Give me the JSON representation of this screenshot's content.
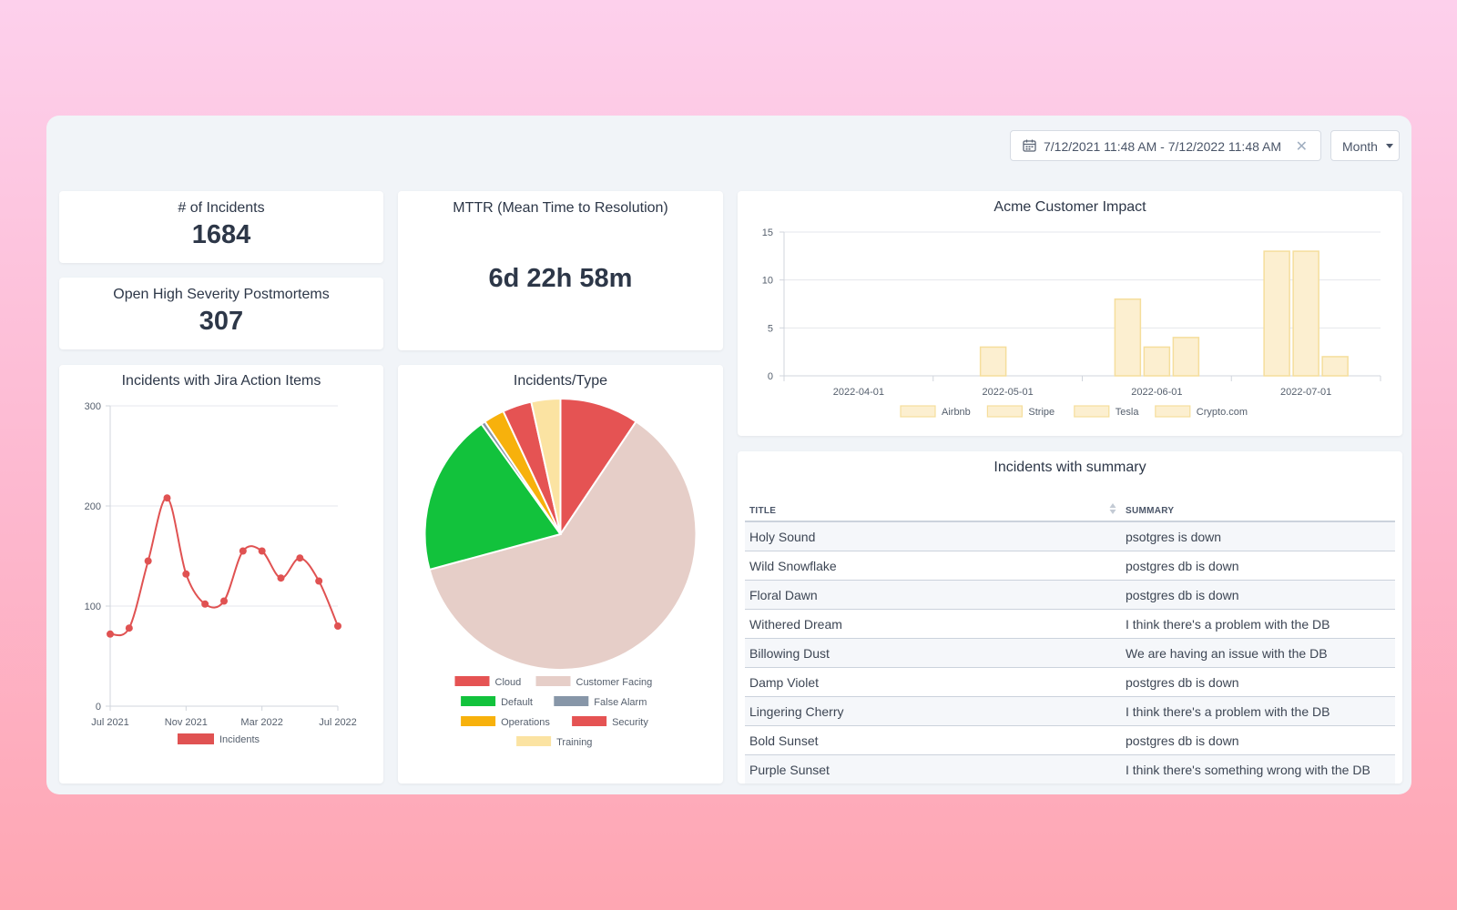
{
  "toolbar": {
    "date_range": "7/12/2021 11:48 AM - 7/12/2022 11:48 AM",
    "clear_glyph": "✕",
    "period": "Month"
  },
  "stats": {
    "incidents": {
      "title": "# of Incidents",
      "value": "1684"
    },
    "postmortems": {
      "title": "Open High Severity Postmortems",
      "value": "307"
    },
    "mttr": {
      "title": "MTTR (Mean Time to Resolution)",
      "value": "6d 22h 58m"
    }
  },
  "chart_data": [
    {
      "type": "line",
      "title": "Incidents with Jira Action Items",
      "x_ticks": [
        "Jul 2021",
        "Nov 2021",
        "Mar 2022",
        "Jul 2022"
      ],
      "ylim": [
        0,
        300
      ],
      "y_ticks": [
        0,
        100,
        200,
        300
      ],
      "series": [
        {
          "name": "Incidents",
          "color": "#e05252",
          "x": [
            "2021-07-01",
            "2021-08-01",
            "2021-09-01",
            "2021-10-01",
            "2021-11-01",
            "2021-12-01",
            "2022-01-01",
            "2022-02-01",
            "2022-03-01",
            "2022-04-01",
            "2022-05-01",
            "2022-06-01",
            "2022-07-01"
          ],
          "values": [
            72,
            78,
            145,
            208,
            132,
            102,
            105,
            155,
            155,
            128,
            148,
            125,
            80
          ]
        }
      ],
      "grid": true,
      "legend": "bottom"
    },
    {
      "type": "pie",
      "title": "Incidents/Type",
      "slices": [
        {
          "label": "Cloud",
          "value": 9.5,
          "color": "#e55353"
        },
        {
          "label": "Customer Facing",
          "value": 62,
          "color": "#e6cec8"
        },
        {
          "label": "Default",
          "value": 19.5,
          "color": "#12c23c"
        },
        {
          "label": "False Alarm",
          "value": 0.5,
          "color": "#8796a8"
        },
        {
          "label": "Operations",
          "value": 2.5,
          "color": "#f7b10c"
        },
        {
          "label": "Security",
          "value": 3.5,
          "color": "#e55353"
        },
        {
          "label": "Training",
          "value": 3.5,
          "color": "#fbe3a2"
        }
      ],
      "legend": "bottom"
    },
    {
      "type": "bar",
      "title": "Acme Customer Impact",
      "x_ticks": [
        "2022-04-01",
        "2022-05-01",
        "2022-06-01",
        "2022-07-01"
      ],
      "ylim": [
        0,
        15
      ],
      "y_ticks": [
        0,
        5,
        10,
        15
      ],
      "series": [
        {
          "name": "Airbnb",
          "color": "#fcefd0"
        },
        {
          "name": "Stripe",
          "color": "#fcefd0"
        },
        {
          "name": "Tesla",
          "color": "#fcefd0"
        },
        {
          "name": "Crypto.com",
          "color": "#fcefd0"
        }
      ],
      "bars": [
        {
          "x": "2022-05-01",
          "offset": -1,
          "value": 3
        },
        {
          "x": "2022-06-01",
          "offset": -2,
          "value": 8
        },
        {
          "x": "2022-06-01",
          "offset": 0,
          "value": 3
        },
        {
          "x": "2022-06-01",
          "offset": 2,
          "value": 4
        },
        {
          "x": "2022-07-01",
          "offset": -2,
          "value": 13
        },
        {
          "x": "2022-07-01",
          "offset": 0,
          "value": 13
        },
        {
          "x": "2022-07-01",
          "offset": 2,
          "value": 2
        }
      ],
      "grid": true,
      "legend": "bottom"
    }
  ],
  "table": {
    "title": "Incidents with summary",
    "columns": [
      "TITLE",
      "SUMMARY"
    ],
    "rows": [
      [
        "Holy Sound",
        "psotgres is down"
      ],
      [
        "Wild Snowflake",
        "postgres db is down"
      ],
      [
        "Floral Dawn",
        "postgres db is down"
      ],
      [
        "Withered Dream",
        "I think there's a problem with the DB"
      ],
      [
        "Billowing Dust",
        "We are having an issue with the DB"
      ],
      [
        "Damp Violet",
        "postgres db is down"
      ],
      [
        "Lingering Cherry",
        "I think there's a problem with the DB"
      ],
      [
        "Bold Sunset",
        "postgres db is down"
      ],
      [
        "Purple Sunset",
        "I think there's something wrong with the DB"
      ]
    ]
  }
}
